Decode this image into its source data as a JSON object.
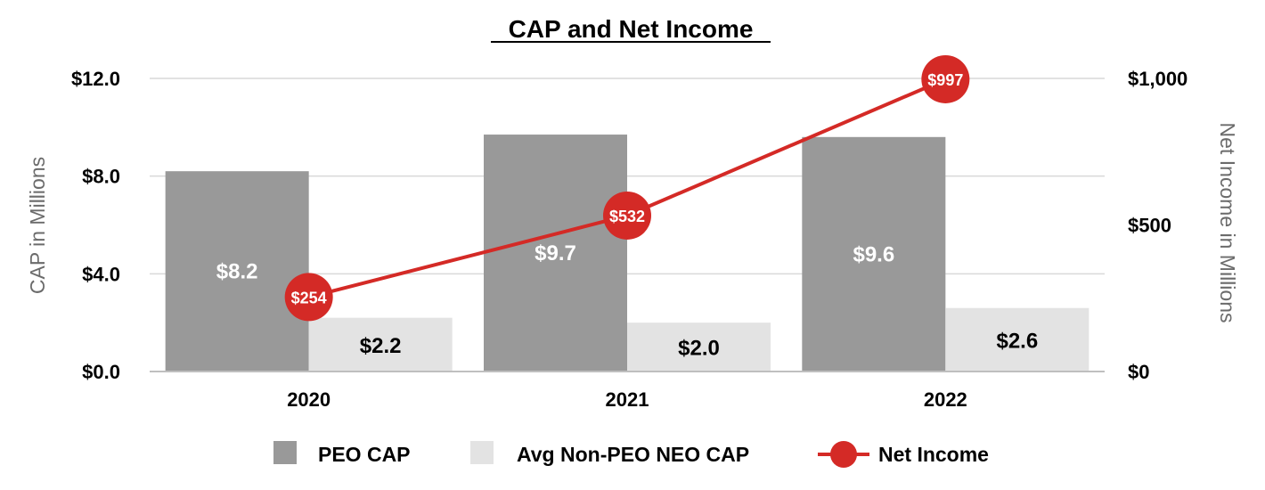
{
  "chart_data": {
    "type": "bar",
    "title": "CAP and Net Income",
    "categories": [
      "2020",
      "2021",
      "2022"
    ],
    "y_left": {
      "label": "CAP in Millions",
      "ylim": [
        0,
        12
      ],
      "ticks": [
        0,
        4,
        8,
        12
      ],
      "tick_labels": [
        "$0.0",
        "$4.0",
        "$8.0",
        "$12.0"
      ]
    },
    "y_right": {
      "label": "Net Income in Millions",
      "ylim": [
        0,
        1000
      ],
      "ticks": [
        0,
        500,
        1000
      ],
      "tick_labels": [
        "$0",
        "$500",
        "$1,000"
      ]
    },
    "series": [
      {
        "name": "PEO CAP",
        "kind": "bar",
        "axis": "left",
        "color": "#999999",
        "values": [
          8.2,
          9.7,
          9.6
        ],
        "labels": [
          "$8.2",
          "$9.7",
          "$9.6"
        ]
      },
      {
        "name": "Avg Non-PEO NEO CAP",
        "kind": "bar",
        "axis": "left",
        "color": "#e3e3e3",
        "values": [
          2.2,
          2.0,
          2.6
        ],
        "labels": [
          "$2.2",
          "$2.0",
          "$2.6"
        ]
      },
      {
        "name": "Net Income",
        "kind": "line",
        "axis": "right",
        "color": "#d42a26",
        "values": [
          254,
          532,
          997
        ],
        "labels": [
          "$254",
          "$532",
          "$997"
        ]
      }
    ],
    "legend_position": "bottom",
    "grid": true
  }
}
